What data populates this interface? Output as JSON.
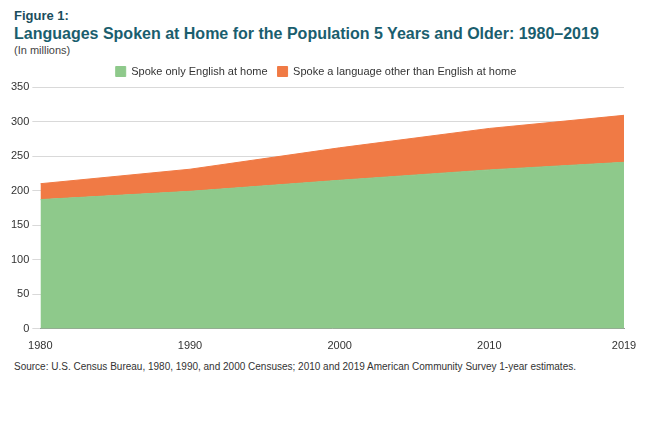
{
  "chart_data": {
    "type": "area",
    "figure_label": "Figure 1:",
    "title": "Languages Spoken at Home for the Population 5 Years and Older: 1980–2019",
    "subtitle": "(In millions)",
    "source": "Source: U.S. Census Bureau, 1980, 1990, and 2000 Censuses; 2010 and 2019 American Community Survey 1-year estimates.",
    "x": [
      1980,
      1990,
      2000,
      2010,
      2019
    ],
    "series": [
      {
        "name": "Spoke only English at home",
        "color": "#8ec98b",
        "values": [
          187,
          199,
          215,
          230,
          241
        ]
      },
      {
        "name": "Spoke a language other than English at home",
        "color": "#f07a45",
        "values": [
          23,
          32,
          47,
          60,
          68
        ]
      }
    ],
    "stacked": true,
    "xlim": [
      1980,
      2019
    ],
    "xticks": [
      1980,
      1990,
      2000,
      2010,
      2019
    ],
    "ylim": [
      0,
      350
    ],
    "yticks": [
      0,
      50,
      100,
      150,
      200,
      250,
      300,
      350
    ],
    "grid": true,
    "legend": "top"
  }
}
